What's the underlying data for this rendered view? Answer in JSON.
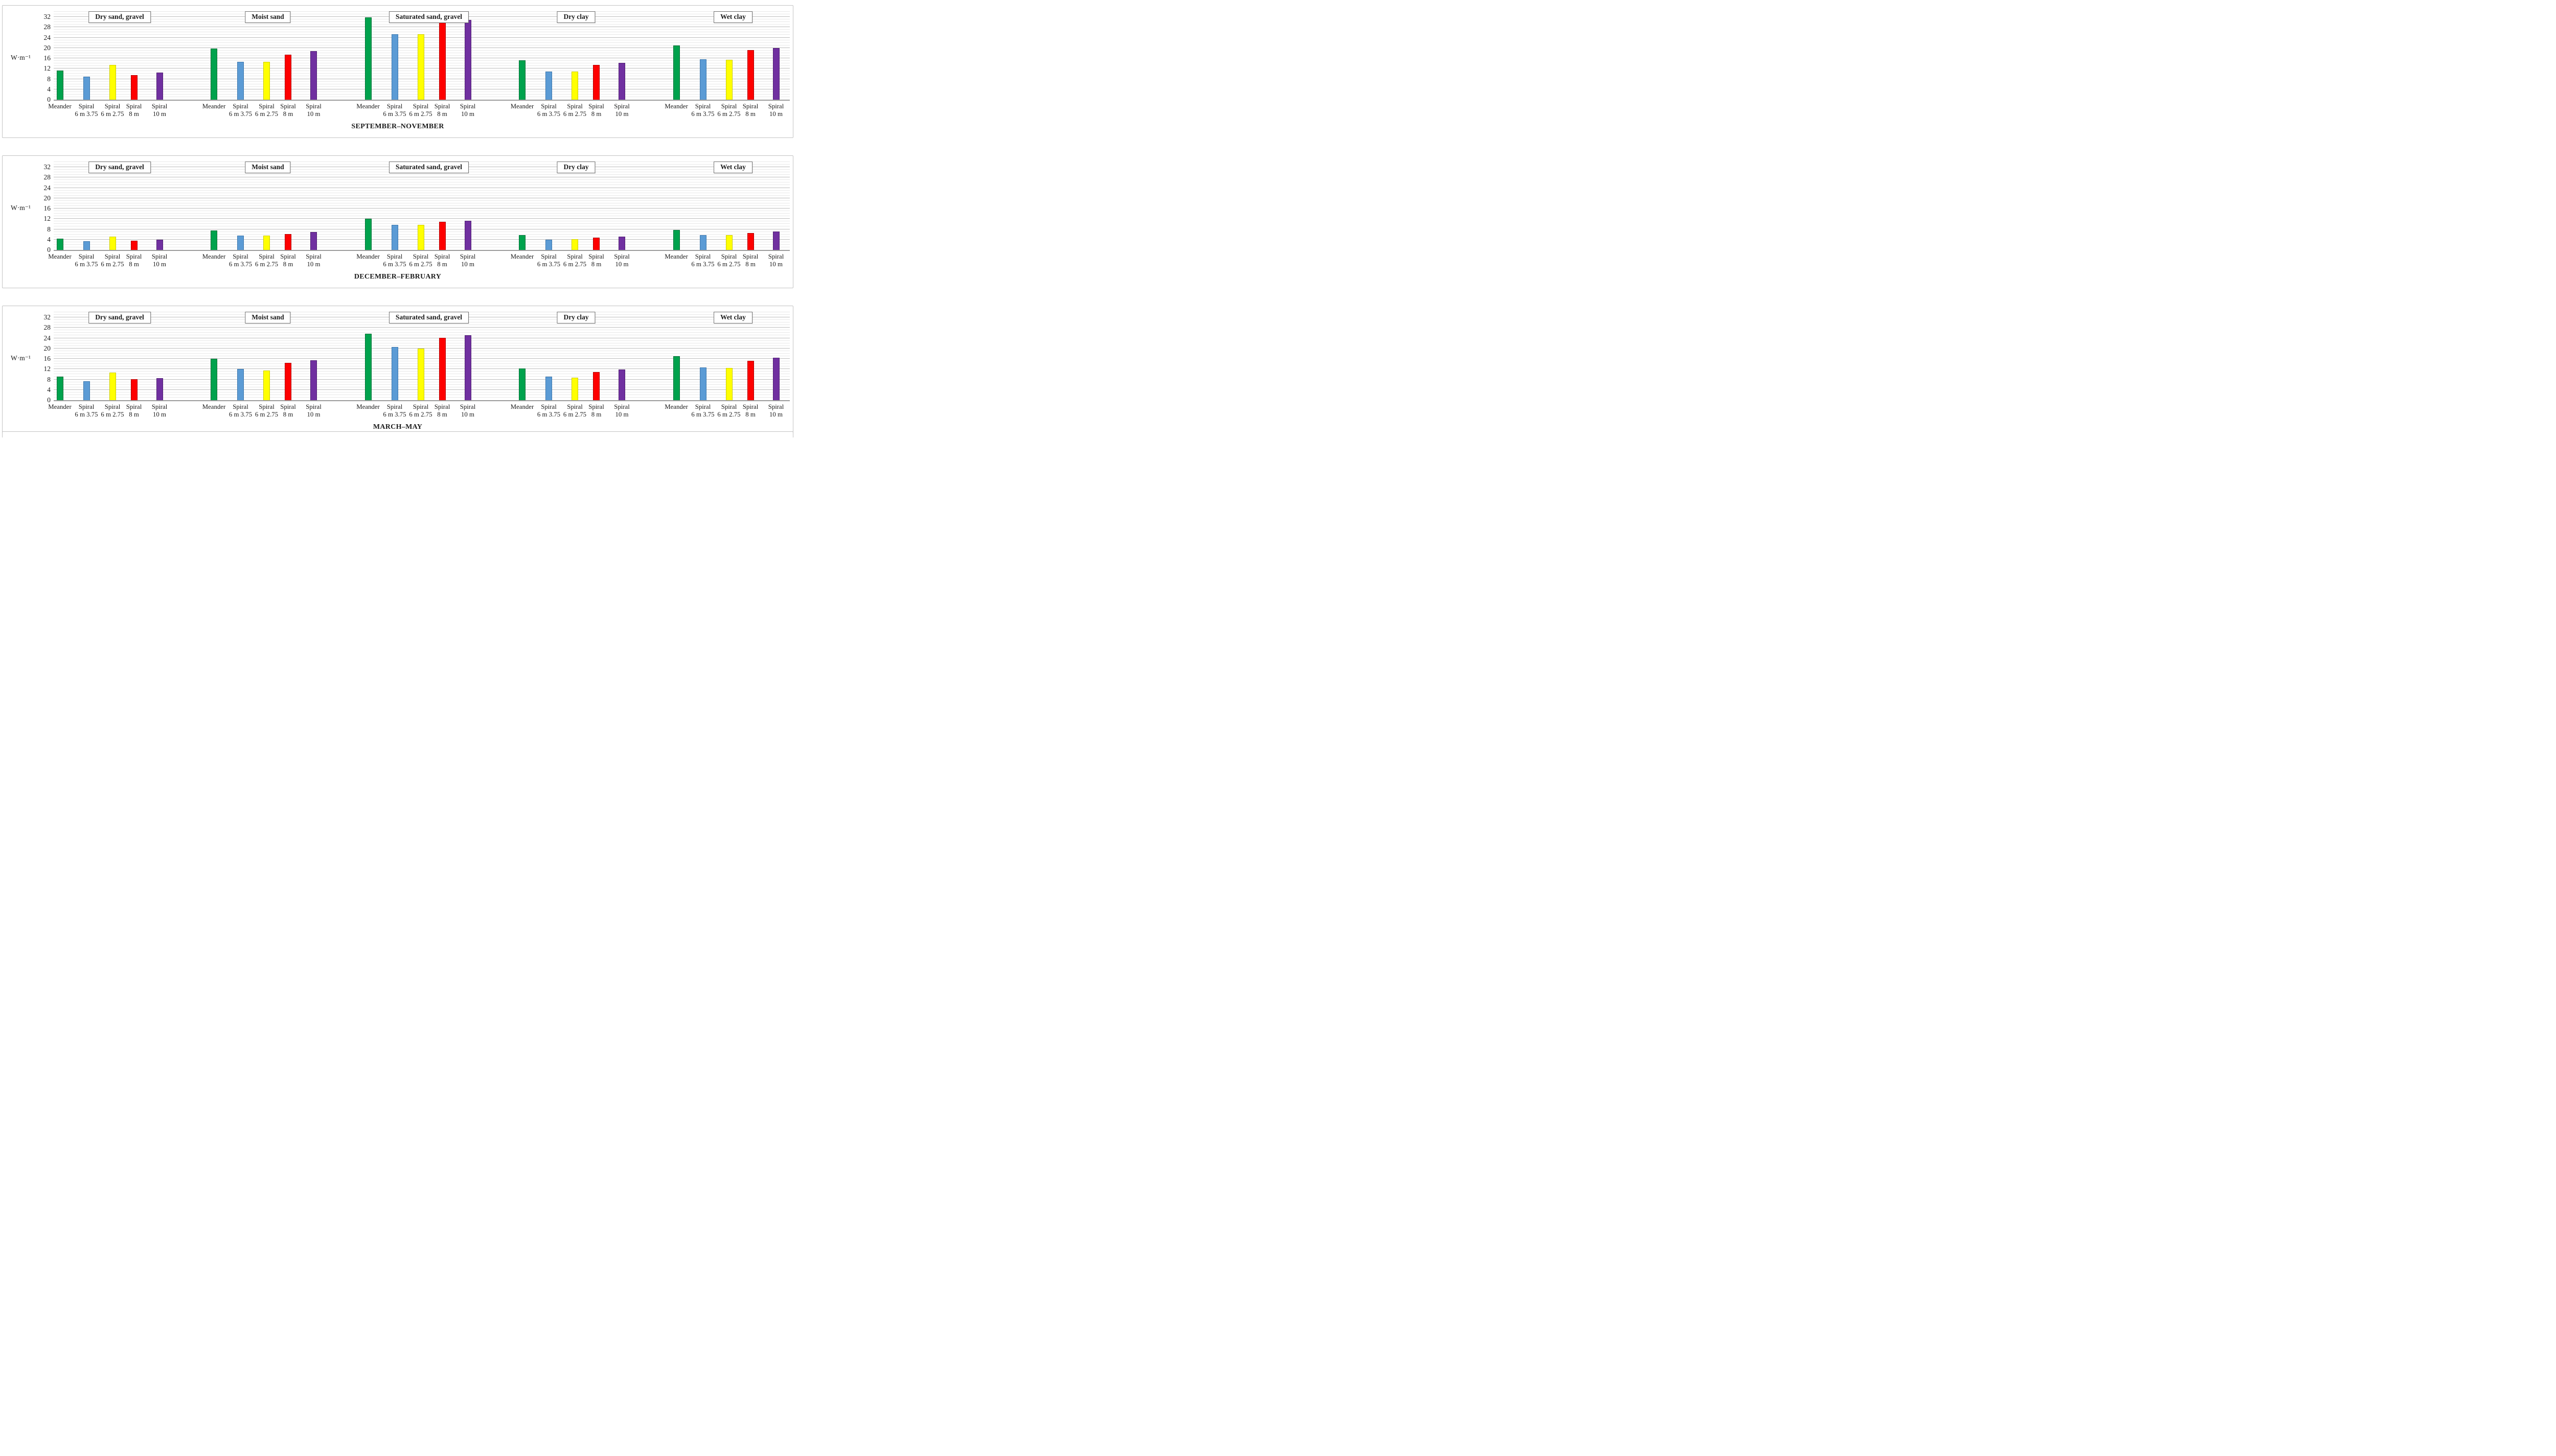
{
  "figure": {
    "background": "#ffffff",
    "border_color": "#c3c3c3",
    "axis_line_color": "#9b9b9b",
    "major_gridline_color": "#bcbcbc",
    "minor_gridline_color": "#e8e8e8"
  },
  "ylabel": "W·m⁻¹",
  "y_ticks": [
    0,
    4,
    8,
    12,
    16,
    20,
    24,
    28,
    32
  ],
  "soils": [
    "Dry sand, gravel",
    "Moist sand",
    "Saturated sand, gravel",
    "Dry clay",
    "Wet clay"
  ],
  "collectors": [
    {
      "name": "Meander",
      "label_line1": "Meander",
      "label_line2": "",
      "color": "#00A24D",
      "border": "#007035"
    },
    {
      "name": "Spiral 6 m 3.75",
      "label_line1": "Spiral",
      "label_line2": "6 m 3.75",
      "color": "#5B9BD5",
      "border": "#3C77AD"
    },
    {
      "name": "Spiral 6 m 2.75",
      "label_line1": "Spiral",
      "label_line2": "6 m 2.75",
      "color": "#FFFF00",
      "border": "#CCCC00"
    },
    {
      "name": "Spiral 8 m",
      "label_line1": "Spiral",
      "label_line2": "8 m",
      "color": "#FE0000",
      "border": "#B00000"
    },
    {
      "name": "Spiral 10 m",
      "label_line1": "Spiral",
      "label_line2": "10 m",
      "color": "#7030A0",
      "border": "#501F73"
    }
  ],
  "chart_data": [
    {
      "type": "bar",
      "title": "SEPTEMBER–NOVEMBER",
      "ylabel": "W·m⁻¹",
      "ylim": [
        0,
        34
      ],
      "ytick_step": 4,
      "grid": "horizontal; minor every 1, major every 4",
      "legend_position": "none (colors keyed to x-axis collector labels)",
      "categories": [
        "Dry sand, gravel",
        "Moist sand",
        "Saturated sand, gravel",
        "Dry clay",
        "Wet clay"
      ],
      "series": [
        {
          "name": "Meander",
          "values": [
            11.2,
            19.8,
            31.9,
            15.3,
            20.9
          ]
        },
        {
          "name": "Spiral 6 m 3.75",
          "values": [
            8.8,
            14.6,
            25.3,
            10.9,
            15.6
          ]
        },
        {
          "name": "Spiral 6 m 2.75",
          "values": [
            13.4,
            14.6,
            25.2,
            10.9,
            15.4
          ]
        },
        {
          "name": "Spiral 8 m",
          "values": [
            9.5,
            17.3,
            30.0,
            13.4,
            19.1
          ]
        },
        {
          "name": "Spiral 10 m",
          "values": [
            10.4,
            18.8,
            30.9,
            14.3,
            20.0
          ]
        }
      ]
    },
    {
      "type": "bar",
      "title": "DECEMBER–FEBRUARY",
      "ylabel": "W·m⁻¹",
      "ylim": [
        0,
        34
      ],
      "ytick_step": 4,
      "grid": "horizontal; minor every 1, major every 4",
      "legend_position": "none (colors keyed to x-axis collector labels)",
      "categories": [
        "Dry sand, gravel",
        "Moist sand",
        "Saturated sand, gravel",
        "Dry clay",
        "Wet clay"
      ],
      "series": [
        {
          "name": "Meander",
          "values": [
            4.3,
            7.5,
            12.0,
            5.7,
            7.8
          ]
        },
        {
          "name": "Spiral 6 m 3.75",
          "values": [
            3.4,
            5.5,
            9.7,
            3.9,
            5.8
          ]
        },
        {
          "name": "Spiral 6 m 2.75",
          "values": [
            5.2,
            5.5,
            9.7,
            4.1,
            5.8
          ]
        },
        {
          "name": "Spiral 8 m",
          "values": [
            3.6,
            6.2,
            10.8,
            4.8,
            6.6
          ]
        },
        {
          "name": "Spiral 10 m",
          "values": [
            3.9,
            6.9,
            11.2,
            5.1,
            7.1
          ]
        }
      ]
    },
    {
      "type": "bar",
      "title": "MARCH–MAY",
      "ylabel": "W·m⁻¹",
      "ylim": [
        0,
        34
      ],
      "ytick_step": 4,
      "grid": "horizontal; minor every 1, major every 4",
      "legend_position": "none (colors keyed to x-axis collector labels)",
      "categories": [
        "Dry sand, gravel",
        "Moist sand",
        "Saturated sand, gravel",
        "Dry clay",
        "Wet clay"
      ],
      "series": [
        {
          "name": "Meander",
          "values": [
            9.0,
            16.0,
            25.7,
            12.2,
            16.9
          ]
        },
        {
          "name": "Spiral 6 m 3.75",
          "values": [
            7.4,
            12.0,
            20.6,
            9.1,
            12.7
          ]
        },
        {
          "name": "Spiral 6 m 2.75",
          "values": [
            10.6,
            11.5,
            19.9,
            8.7,
            12.4
          ]
        },
        {
          "name": "Spiral 8 m",
          "values": [
            8.2,
            14.4,
            24.2,
            10.9,
            15.3
          ]
        },
        {
          "name": "Spiral 10 m",
          "values": [
            8.5,
            15.4,
            25.1,
            11.9,
            16.4
          ]
        }
      ]
    }
  ]
}
